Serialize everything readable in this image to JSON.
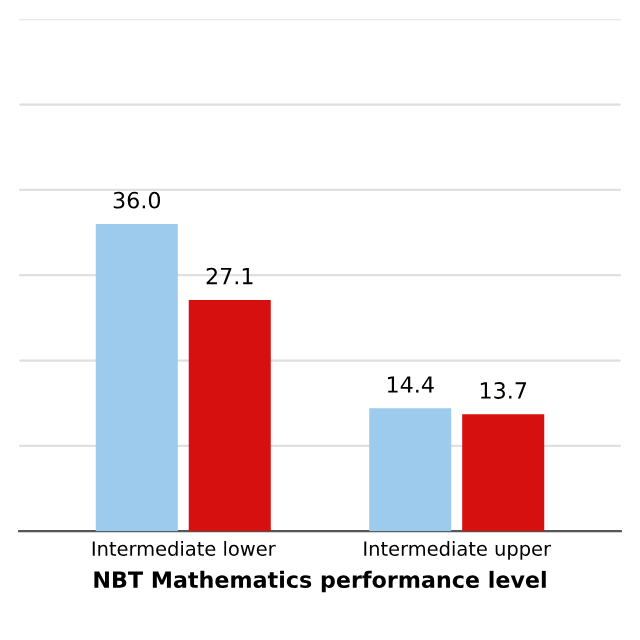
{
  "chart_data": {
    "type": "bar",
    "xlabel": "NBT Mathematics performance level",
    "categories": [
      "Intermediate lower",
      "Intermediate upper"
    ],
    "series": [
      {
        "color": "#9dcbee",
        "values": [
          36.0,
          14.4
        ],
        "value_labels": [
          "36.0",
          "14.4"
        ]
      },
      {
        "color": "#d60f0f",
        "values": [
          27.1,
          13.7
        ],
        "value_labels": [
          "27.1",
          "13.7"
        ]
      }
    ],
    "ylim": [
      0,
      60
    ],
    "yticks": [
      {
        "value": 0,
        "label": null
      },
      {
        "value": 10,
        "label": null
      },
      {
        "value": 20,
        "label": null
      },
      {
        "value": 30,
        "label": null
      },
      {
        "value": 40,
        "label": null
      },
      {
        "value": 50,
        "label": null
      },
      {
        "value": 60,
        "label": null
      }
    ],
    "grid": "y",
    "tick_labels": "x",
    "legend": false
  }
}
